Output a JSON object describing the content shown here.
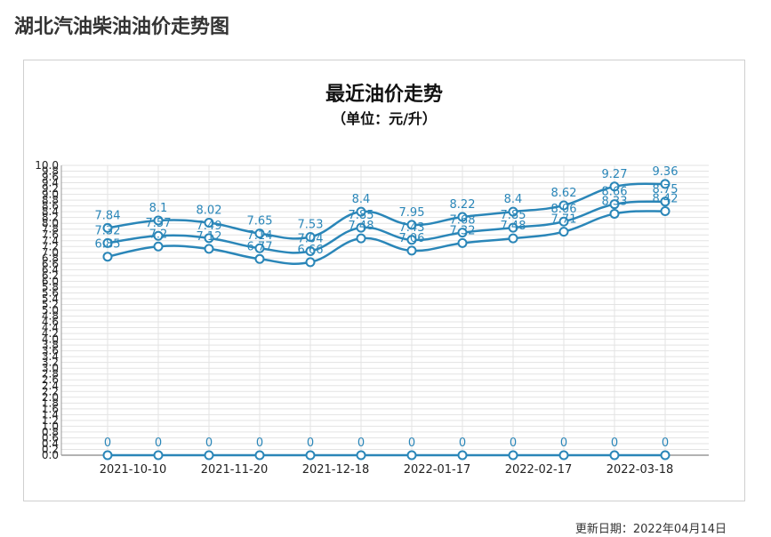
{
  "page": {
    "title": "湖北汽油柴油油价走势图",
    "update_label": "更新日期：",
    "update_date": "2022年04月14日"
  },
  "chart_data": {
    "type": "line",
    "title": "最近油价走势",
    "subtitle": "（单位：元/升）",
    "xlabel": "",
    "ylabel": "",
    "ylim": [
      0,
      10
    ],
    "ytick_step": 0.2,
    "grid": true,
    "x_labels": [
      "2021-10-10",
      "2021-11-20",
      "2021-12-18",
      "2022-01-17",
      "2022-02-17",
      "2022-03-18"
    ],
    "colors": {
      "line": "#2a86b8",
      "label": "#2a86b8",
      "grid": "#e3e3e3",
      "axis": "#999999"
    },
    "series": [
      {
        "values": [
          7.84,
          8.1,
          8.02,
          7.65,
          7.53,
          8.4,
          7.95,
          8.22,
          8.4,
          8.62,
          9.27,
          9.36
        ]
      },
      {
        "values": [
          7.32,
          7.57,
          7.49,
          7.14,
          7.04,
          7.85,
          7.43,
          7.68,
          7.85,
          8.06,
          8.66,
          8.75
        ]
      },
      {
        "values": [
          6.85,
          7.2,
          7.12,
          6.77,
          6.66,
          7.48,
          7.06,
          7.32,
          7.48,
          7.71,
          8.33,
          8.42
        ]
      },
      {
        "values": [
          0,
          0,
          0,
          0,
          0,
          0,
          0,
          0,
          0,
          0,
          0,
          0
        ]
      }
    ]
  }
}
